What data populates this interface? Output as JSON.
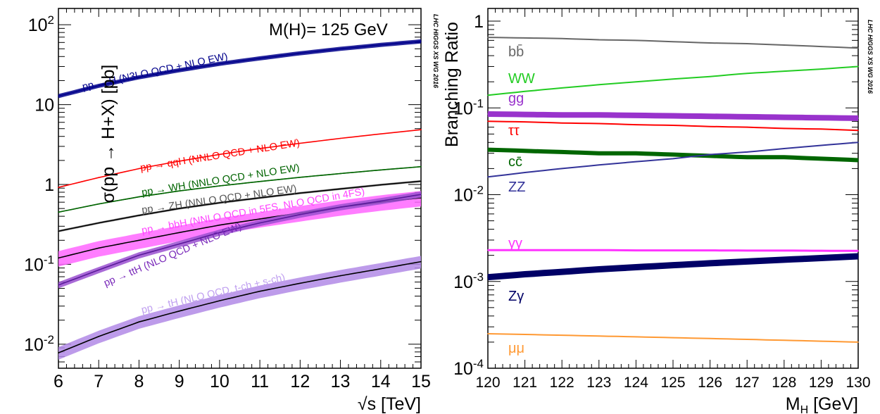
{
  "chart_data": [
    {
      "type": "line",
      "annotation": "M(H)= 125 GeV",
      "watermark": "LHC HIGGS XS WG 2016",
      "xlabel": "√s [TeV]",
      "ylabel": "σ(pp → H+X) [pb]",
      "xlim": [
        6,
        15
      ],
      "ylim": [
        0.005,
        160
      ],
      "yscale": "log",
      "xticks": [
        "6",
        "7",
        "8",
        "9",
        "10",
        "11",
        "12",
        "13",
        "14",
        "15"
      ],
      "yticks": [
        {
          "value": 0.01,
          "base": "10",
          "exp": "-2"
        },
        {
          "value": 0.1,
          "base": "10",
          "exp": "-1"
        },
        {
          "value": 1,
          "base": "1",
          "exp": ""
        },
        {
          "value": 10,
          "base": "10",
          "exp": ""
        },
        {
          "value": 100,
          "base": "10",
          "exp": "2"
        }
      ],
      "x": [
        6,
        7,
        8,
        9,
        10,
        11,
        12,
        13,
        14,
        15
      ],
      "series": [
        {
          "name": "pp → H (N3LO QCD + NLO EW)",
          "color": "#00008b",
          "band_color": "#00008b",
          "band_frac": 0.06,
          "values": [
            12.8,
            17.2,
            22.0,
            27.0,
            32.5,
            38.0,
            44.0,
            50.0,
            56.0,
            62.0
          ]
        },
        {
          "name": "pp → qqH (NNLO QCD + NLO EW)",
          "color": "#ff0000",
          "band_color": "#ff0000",
          "band_frac": 0.01,
          "values": [
            0.92,
            1.22,
            1.58,
            1.96,
            2.38,
            2.82,
            3.28,
            3.78,
            4.3,
            4.85
          ]
        },
        {
          "name": "pp → WH (NNLO QCD + NLO EW)",
          "color": "#006400",
          "band_color": "#006400",
          "band_frac": 0.015,
          "values": [
            0.45,
            0.57,
            0.7,
            0.83,
            0.96,
            1.09,
            1.23,
            1.37,
            1.52,
            1.67
          ]
        },
        {
          "name": "pp → ZH (NNLO QCD + NLO EW)",
          "color": "#000000",
          "band_color": "#777777",
          "band_frac": 0.03,
          "values": [
            0.26,
            0.33,
            0.41,
            0.5,
            0.59,
            0.68,
            0.78,
            0.88,
            0.99,
            1.1
          ]
        },
        {
          "name": "pp → bbH (NNLO QCD in 5FS, NLO QCD in 4FS)",
          "color": "#000000",
          "band_color": "#ff66ff",
          "band_frac": 0.22,
          "values": [
            0.12,
            0.16,
            0.2,
            0.25,
            0.31,
            0.37,
            0.44,
            0.52,
            0.6,
            0.68
          ]
        },
        {
          "name": "pp → ttH (NLO QCD + NLO EW)",
          "color": "#5a1a9a",
          "band_color": "#9a50d0",
          "band_frac": 0.09,
          "values": [
            0.055,
            0.085,
            0.13,
            0.18,
            0.25,
            0.33,
            0.42,
            0.52,
            0.62,
            0.75
          ]
        },
        {
          "name": "pp → tH (NLO QCD, t-ch + s-ch)",
          "color": "#000000",
          "band_color": "#b28ae6",
          "band_frac": 0.18,
          "values": [
            0.0078,
            0.0125,
            0.019,
            0.026,
            0.035,
            0.046,
            0.058,
            0.072,
            0.088,
            0.108
          ]
        }
      ]
    },
    {
      "type": "line",
      "watermark": "LHC HIGGS XS WG 2016",
      "xlabel": "M",
      "xlabel_sub": "H",
      "xlabel_unit": " [GeV]",
      "ylabel": "Branching Ratio",
      "xlim": [
        120,
        130
      ],
      "ylim": [
        0.0001,
        1.4
      ],
      "yscale": "log",
      "xticks": [
        "120",
        "121",
        "122",
        "123",
        "124",
        "125",
        "126",
        "127",
        "128",
        "129",
        "130"
      ],
      "yticks": [
        {
          "value": 0.0001,
          "base": "10",
          "exp": "-4"
        },
        {
          "value": 0.001,
          "base": "10",
          "exp": "-3"
        },
        {
          "value": 0.01,
          "base": "10",
          "exp": "-2"
        },
        {
          "value": 0.1,
          "base": "10",
          "exp": "-1"
        },
        {
          "value": 1,
          "base": "1",
          "exp": ""
        }
      ],
      "x": [
        120,
        121,
        122,
        123,
        124,
        125,
        126,
        127,
        128,
        129,
        130
      ],
      "series": [
        {
          "name": "bb̄",
          "color": "#666666",
          "width": 2,
          "values": [
            0.65,
            0.64,
            0.63,
            0.61,
            0.6,
            0.58,
            0.56,
            0.55,
            0.53,
            0.51,
            0.49
          ]
        },
        {
          "name": "WW",
          "color": "#22cc22",
          "width": 2,
          "values": [
            0.14,
            0.155,
            0.17,
            0.185,
            0.2,
            0.215,
            0.23,
            0.25,
            0.265,
            0.28,
            0.3
          ]
        },
        {
          "name": "gg",
          "color": "#9933cc",
          "width": 8,
          "values": [
            0.085,
            0.084,
            0.083,
            0.083,
            0.082,
            0.081,
            0.08,
            0.079,
            0.078,
            0.077,
            0.076
          ]
        },
        {
          "name": "ττ",
          "color": "#ff0000",
          "width": 2,
          "values": [
            0.07,
            0.069,
            0.067,
            0.066,
            0.064,
            0.063,
            0.061,
            0.06,
            0.058,
            0.057,
            0.055
          ]
        },
        {
          "name": "cc̄",
          "color": "#006600",
          "width": 6,
          "values": [
            0.033,
            0.032,
            0.031,
            0.03,
            0.03,
            0.029,
            0.028,
            0.027,
            0.027,
            0.026,
            0.025
          ]
        },
        {
          "name": "ZZ",
          "color": "#333399",
          "width": 2,
          "values": [
            0.016,
            0.018,
            0.02,
            0.022,
            0.024,
            0.026,
            0.029,
            0.031,
            0.034,
            0.037,
            0.04
          ]
        },
        {
          "name": "γγ",
          "color": "#ff33ff",
          "width": 3,
          "values": [
            0.0023,
            0.0023,
            0.0023,
            0.0023,
            0.00228,
            0.00228,
            0.00228,
            0.00227,
            0.00227,
            0.00226,
            0.00225
          ]
        },
        {
          "name": "Zγ",
          "color": "#000066",
          "width": 9,
          "values": [
            0.00112,
            0.00121,
            0.00129,
            0.00138,
            0.00146,
            0.00154,
            0.00162,
            0.0017,
            0.00178,
            0.00186,
            0.00195
          ]
        },
        {
          "name": "μμ",
          "color": "#ff9933",
          "width": 2,
          "values": [
            0.00025,
            0.000245,
            0.00024,
            0.000235,
            0.00023,
            0.000225,
            0.00022,
            0.000215,
            0.00021,
            0.000205,
            0.0002
          ]
        }
      ]
    }
  ]
}
